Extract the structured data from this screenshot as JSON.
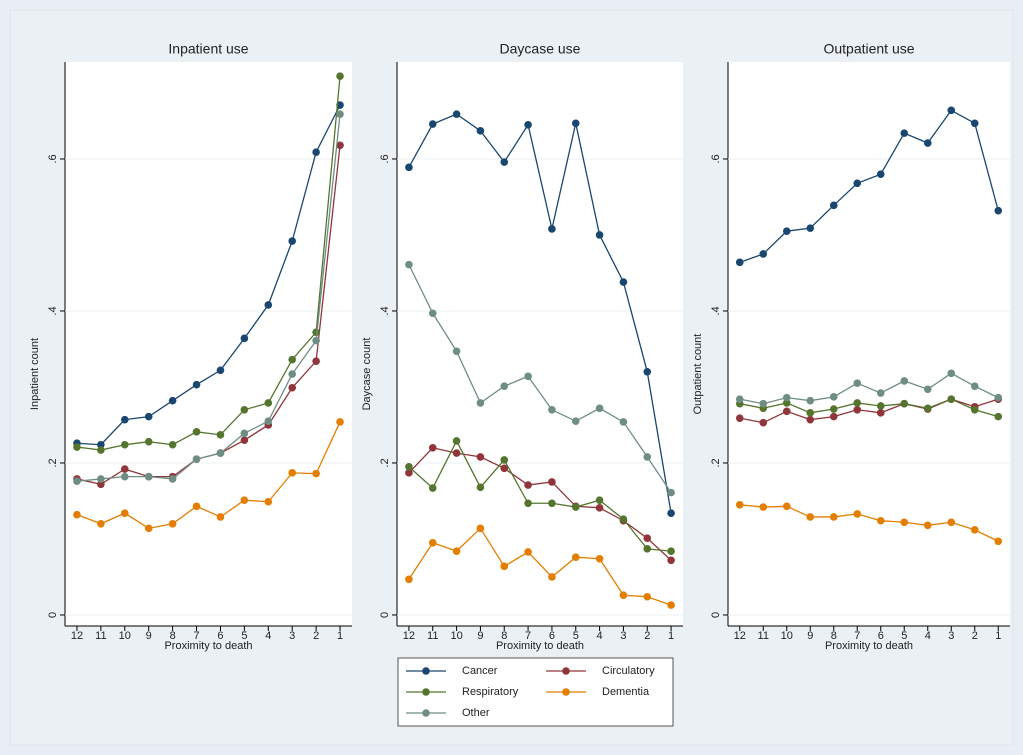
{
  "chart_data": [
    {
      "type": "line",
      "title": "Inpatient use",
      "xlabel": "Proximity to death",
      "ylabel": "Inpatient count",
      "categories": [
        "12",
        "11",
        "10",
        "9",
        "8",
        "7",
        "6",
        "5",
        "4",
        "3",
        "2",
        "1"
      ],
      "ylim": [
        -0.0145,
        0.7276
      ],
      "yticks": [
        0,
        {
          "value": 0.2,
          "label": ".2"
        },
        {
          "value": 0.4,
          "label": ".4"
        },
        {
          "value": 0.6,
          "label": ".6"
        }
      ],
      "grid": true,
      "series": [
        {
          "name": "Cancer",
          "color": "#1a476f",
          "values": [
            0.226,
            0.224,
            0.257,
            0.261,
            0.282,
            0.303,
            0.322,
            0.364,
            0.408,
            0.492,
            0.609,
            0.671
          ]
        },
        {
          "name": "Circulatory",
          "color": "#90353b",
          "values": [
            0.179,
            0.172,
            0.192,
            0.182,
            0.182,
            0.205,
            0.213,
            0.23,
            0.25,
            0.299,
            0.334,
            0.618
          ]
        },
        {
          "name": "Respiratory",
          "color": "#55752f",
          "values": [
            0.221,
            0.217,
            0.224,
            0.228,
            0.224,
            0.241,
            0.237,
            0.27,
            0.279,
            0.336,
            0.372,
            0.709
          ]
        },
        {
          "name": "Dementia",
          "color": "#e37e00",
          "values": [
            0.132,
            0.12,
            0.134,
            0.114,
            0.12,
            0.143,
            0.129,
            0.151,
            0.149,
            0.187,
            0.186,
            0.254
          ]
        },
        {
          "name": "Other",
          "color": "#6e8e84",
          "values": [
            0.176,
            0.179,
            0.182,
            0.182,
            0.179,
            0.205,
            0.213,
            0.239,
            0.255,
            0.317,
            0.361,
            0.659
          ]
        }
      ]
    },
    {
      "type": "line",
      "title": "Daycase use",
      "xlabel": "Proximity to death",
      "ylabel": "Daycase count",
      "categories": [
        "12",
        "11",
        "10",
        "9",
        "8",
        "7",
        "6",
        "5",
        "4",
        "3",
        "2",
        "1"
      ],
      "ylim": [
        -0.0145,
        0.7276
      ],
      "yticks": [
        0,
        {
          "value": 0.2,
          "label": ".2"
        },
        {
          "value": 0.4,
          "label": ".4"
        },
        {
          "value": 0.6,
          "label": ".6"
        }
      ],
      "grid": true,
      "series": [
        {
          "color": "#1a476f",
          "values": [
            0.589,
            0.646,
            0.659,
            0.637,
            0.596,
            0.645,
            0.508,
            0.647,
            0.5,
            0.438,
            0.32,
            0.134
          ]
        },
        {
          "color": "#90353b",
          "values": [
            0.187,
            0.22,
            0.213,
            0.208,
            0.193,
            0.171,
            0.175,
            0.143,
            0.141,
            0.124,
            0.101,
            0.072
          ]
        },
        {
          "color": "#55752f",
          "values": [
            0.195,
            0.167,
            0.229,
            0.168,
            0.204,
            0.147,
            0.147,
            0.142,
            0.151,
            0.126,
            0.087,
            0.084
          ]
        },
        {
          "color": "#e37e00",
          "values": [
            0.047,
            0.095,
            0.084,
            0.114,
            0.064,
            0.083,
            0.05,
            0.076,
            0.074,
            0.026,
            0.024,
            0.013
          ]
        },
        {
          "color": "#6e8e84",
          "values": [
            0.461,
            0.397,
            0.347,
            0.279,
            0.301,
            0.314,
            0.27,
            0.255,
            0.272,
            0.254,
            0.208,
            0.161
          ]
        }
      ]
    },
    {
      "type": "line",
      "title": "Outpatient use",
      "xlabel": "Proximity to death",
      "ylabel": "Outpatient count",
      "categories": [
        "12",
        "11",
        "10",
        "9",
        "8",
        "7",
        "6",
        "5",
        "4",
        "3",
        "2",
        "1"
      ],
      "ylim": [
        -0.0145,
        0.7276
      ],
      "yticks": [
        0,
        {
          "value": 0.2,
          "label": ".2"
        },
        {
          "value": 0.4,
          "label": ".4"
        },
        {
          "value": 0.6,
          "label": ".6"
        }
      ],
      "grid": true,
      "series": [
        {
          "color": "#1a476f",
          "values": [
            0.464,
            0.475,
            0.505,
            0.509,
            0.539,
            0.568,
            0.58,
            0.634,
            0.621,
            0.664,
            0.647,
            0.532
          ]
        },
        {
          "color": "#90353b",
          "values": [
            0.259,
            0.253,
            0.268,
            0.257,
            0.261,
            0.27,
            0.266,
            0.278,
            0.271,
            0.284,
            0.274,
            0.284
          ]
        },
        {
          "color": "#55752f",
          "values": [
            0.278,
            0.272,
            0.279,
            0.266,
            0.271,
            0.279,
            0.275,
            0.278,
            0.272,
            0.284,
            0.27,
            0.261
          ]
        },
        {
          "color": "#e37e00",
          "values": [
            0.145,
            0.142,
            0.143,
            0.129,
            0.129,
            0.133,
            0.124,
            0.122,
            0.118,
            0.122,
            0.112,
            0.097
          ]
        },
        {
          "color": "#6e8e84",
          "values": [
            0.284,
            0.278,
            0.286,
            0.282,
            0.287,
            0.305,
            0.292,
            0.308,
            0.297,
            0.318,
            0.301,
            0.286
          ]
        }
      ]
    }
  ]
}
